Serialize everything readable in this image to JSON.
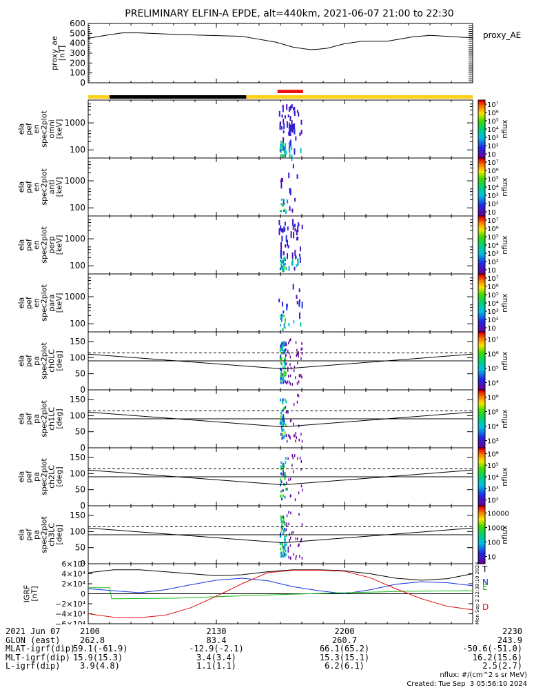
{
  "title": "PRELIMINARY ELFIN-A EPDE, alt=440km, 2021-06-07 21:00 to 22:30",
  "chart_data": [
    {
      "type": "line",
      "panel": "proxy_ae",
      "ylabel": "proxy_ae [nT]",
      "legend": "proxy_AE",
      "ylim": [
        0,
        600
      ],
      "yticks": [
        "0",
        "100",
        "200",
        "300",
        "400",
        "500",
        "600"
      ],
      "x_minutes": [
        0,
        4,
        8,
        12,
        20,
        28,
        36,
        40,
        44,
        48,
        52,
        54,
        56,
        60,
        64,
        68,
        70,
        72,
        76,
        80,
        84,
        88,
        90
      ],
      "values": [
        450,
        480,
        505,
        505,
        490,
        480,
        470,
        440,
        410,
        360,
        335,
        340,
        350,
        395,
        420,
        420,
        420,
        435,
        465,
        480,
        470,
        460,
        455
      ]
    },
    {
      "type": "bar",
      "panel": "status_bar",
      "segments": [
        {
          "from": 0,
          "to": 5,
          "color": "#ffd21a"
        },
        {
          "from": 5,
          "to": 37,
          "color": "#000000"
        },
        {
          "from": 37,
          "to": 90,
          "color": "#ffd21a"
        }
      ],
      "science_zone": {
        "from": 44.3,
        "to": 50.3,
        "color": "#ee1111"
      }
    },
    {
      "type": "heatmap",
      "panel": "spec_omni",
      "ylabel": [
        "ela",
        "pef",
        "en",
        "spec2plot",
        "omni",
        "[keV]"
      ],
      "y_scale": "log",
      "ylim": [
        50,
        7000
      ],
      "yticks": [
        "100",
        "1000"
      ],
      "colorbar": {
        "label": "nflux",
        "ticks": [
          "10",
          "10^2",
          "10^3",
          "10^4",
          "10^5",
          "10^6",
          "10^7"
        ]
      }
    },
    {
      "type": "heatmap",
      "panel": "spec_anti",
      "ylabel": [
        "ela",
        "pef",
        "en",
        "spec2plot",
        "anti",
        "[keV]"
      ],
      "y_scale": "log",
      "ylim": [
        50,
        7000
      ],
      "yticks": [
        "100",
        "1000"
      ],
      "colorbar": {
        "label": "nflux",
        "ticks": [
          "10",
          "10^2",
          "10^3",
          "10^4",
          "10^5",
          "10^6",
          "10^7"
        ]
      }
    },
    {
      "type": "heatmap",
      "panel": "spec_perp",
      "ylabel": [
        "ela",
        "pef",
        "en",
        "spec2plot",
        "perp",
        "[keV]"
      ],
      "y_scale": "log",
      "ylim": [
        50,
        7000
      ],
      "yticks": [
        "100",
        "1000"
      ],
      "colorbar": {
        "label": "nflux",
        "ticks": [
          "10",
          "10^2",
          "10^3",
          "10^4",
          "10^5",
          "10^6",
          "10^7"
        ]
      }
    },
    {
      "type": "heatmap",
      "panel": "spec_para",
      "ylabel": [
        "ela",
        "pef",
        "en",
        "spec2plot",
        "para",
        "[keV]"
      ],
      "y_scale": "log",
      "ylim": [
        50,
        7000
      ],
      "yticks": [
        "100",
        "1000"
      ],
      "colorbar": {
        "label": "nflux",
        "ticks": [
          "10",
          "10^2",
          "10^3",
          "10^4",
          "10^5",
          "10^6",
          "10^7"
        ]
      }
    },
    {
      "type": "heatmap",
      "panel": "pa_ch0",
      "ylabel": [
        "ela",
        "pef",
        "pa",
        "spec2plot",
        "ch0LC",
        "[deg]"
      ],
      "ylim": [
        0,
        180
      ],
      "yticks": [
        "0",
        "50",
        "100",
        "150"
      ],
      "colorbar": {
        "label": "nflux",
        "ticks": [
          "10^4",
          "10^5",
          "10^6",
          "10^7"
        ]
      }
    },
    {
      "type": "heatmap",
      "panel": "pa_ch1",
      "ylabel": [
        "ela",
        "pef",
        "pa",
        "spec2plot",
        "ch1LC",
        "[deg]"
      ],
      "ylim": [
        0,
        180
      ],
      "yticks": [
        "0",
        "50",
        "100",
        "150"
      ],
      "colorbar": {
        "label": "nflux",
        "ticks": [
          "10^3",
          "10^4",
          "10^5",
          "10^6"
        ]
      }
    },
    {
      "type": "heatmap",
      "panel": "pa_ch2",
      "ylabel": [
        "ela",
        "pef",
        "pa",
        "spec2plot",
        "ch2LC",
        "[deg]"
      ],
      "ylim": [
        0,
        180
      ],
      "yticks": [
        "0",
        "50",
        "100",
        "150"
      ],
      "colorbar": {
        "label": "nflux",
        "ticks": [
          "10^2",
          "10^3",
          "10^4",
          "10^5",
          "10^6"
        ]
      }
    },
    {
      "type": "heatmap",
      "panel": "pa_ch3",
      "ylabel": [
        "ela",
        "pef",
        "pa",
        "spec2plot",
        "ch3LC",
        "[deg]"
      ],
      "ylim": [
        0,
        180
      ],
      "yticks": [
        "0",
        "50",
        "100",
        "150"
      ],
      "colorbar": {
        "label": "nflux",
        "ticks": [
          "10",
          "100",
          "1000",
          "10000"
        ]
      }
    },
    {
      "type": "line",
      "panel": "igrf",
      "ylabel": [
        "IGRF",
        "[nT]"
      ],
      "ylim": [
        -60000,
        60000
      ],
      "yticks": [
        "6×10⁴",
        "4×10⁴",
        "2×10⁴",
        "0",
        "−2×10⁴",
        "−4×10⁴",
        "−6×10⁴"
      ],
      "series": [
        {
          "name": "T",
          "color": "#000000",
          "x": [
            0,
            6,
            12,
            18,
            24,
            30,
            36,
            42,
            48,
            54,
            60,
            66,
            72,
            78,
            84,
            90
          ],
          "values": [
            42000,
            48000,
            48000,
            44000,
            40000,
            36000,
            38000,
            44000,
            48000,
            48000,
            46000,
            40000,
            31000,
            27000,
            30000,
            40000
          ]
        },
        {
          "name": "N",
          "color": "#1030dd",
          "x": [
            0,
            6,
            12,
            18,
            24,
            30,
            36,
            42,
            48,
            54,
            60,
            66,
            72,
            78,
            84,
            90
          ],
          "values": [
            10000,
            6000,
            2000,
            8000,
            18000,
            27000,
            31000,
            26000,
            14000,
            6000,
            0,
            8000,
            19000,
            24000,
            22000,
            16000
          ]
        },
        {
          "name": "E",
          "color": "#11bb11",
          "x": [
            0,
            5,
            5.5,
            20,
            40,
            60,
            75,
            90
          ],
          "values": [
            12000,
            12000,
            -10000,
            -9000,
            -3000,
            2000,
            5000,
            6000
          ]
        },
        {
          "name": "D",
          "color": "#dd1111",
          "x": [
            0,
            6,
            12,
            18,
            24,
            30,
            36,
            42,
            48,
            54,
            60,
            66,
            72,
            78,
            84,
            90
          ],
          "values": [
            -40000,
            -47000,
            -48000,
            -43000,
            -28000,
            -5000,
            20000,
            42000,
            47000,
            47000,
            45000,
            32000,
            10000,
            -10000,
            -25000,
            -32000
          ]
        }
      ]
    }
  ],
  "ratios": [
    "0.81",
    "0.81",
    "0.81",
    "0.81",
    "0.81",
    "0.81",
    "0.81",
    "0.81"
  ],
  "footer": {
    "rows": [
      {
        "label": "2021 Jun 07",
        "v": [
          "2100",
          "2130",
          "2200",
          "2230"
        ]
      },
      {
        "label": "GLON (east)",
        "v": [
          "262.8",
          "83.4",
          "260.7",
          "243.9"
        ]
      },
      {
        "label": "MLAT-igrf(dip)",
        "v": [
          "59.1(-61.9)",
          "-12.9(-2.1)",
          "66.1(65.2)",
          "-50.6(-51.0)"
        ]
      },
      {
        "label": "MLT-igrf(dip)",
        "v": [
          "15.9(15.3)",
          "3.4(3.4)",
          "15.3(15.1)",
          "16.2(15.6)"
        ]
      },
      {
        "label": "L-igrf(dip)",
        "v": [
          "3.9(4.8)",
          "1.1(1.1)",
          "6.2(6.1)",
          "2.5(2.7)"
        ]
      }
    ],
    "units_note": "nflux: #/(cm^2 s sr MeV)",
    "created": "Created: Tue Sep  3 05:56:10 2024",
    "side_stamp": "Mon Sep  2 22:38:10 2024"
  }
}
